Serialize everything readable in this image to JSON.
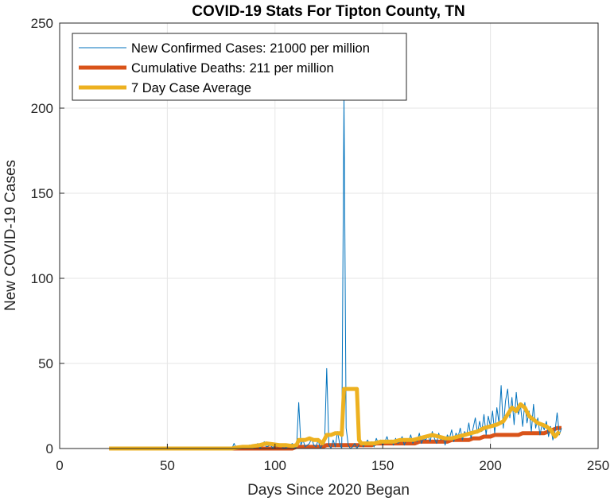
{
  "chart_data": {
    "type": "line",
    "title": "COVID-19 Stats For Tipton County, TN",
    "xlabel": "Days Since 2020 Began",
    "ylabel": "New COVID-19 Cases",
    "xlim": [
      0,
      250
    ],
    "ylim": [
      0,
      250
    ],
    "xticks": [
      "0",
      "50",
      "100",
      "150",
      "200",
      "250"
    ],
    "yticks": [
      "0",
      "50",
      "100",
      "150",
      "200",
      "250"
    ],
    "grid": true,
    "legend_position": "top-left",
    "series": [
      {
        "name": "New Confirmed Cases: 21000 per million",
        "color": "#0072BD",
        "style": "thin",
        "points": [
          [
            23,
            0
          ],
          [
            40,
            0
          ],
          [
            60,
            0
          ],
          [
            78,
            0
          ],
          [
            80,
            0
          ],
          [
            81,
            3
          ],
          [
            82,
            0
          ],
          [
            84,
            1
          ],
          [
            86,
            0
          ],
          [
            88,
            2
          ],
          [
            90,
            0
          ],
          [
            92,
            3
          ],
          [
            93,
            0
          ],
          [
            95,
            4
          ],
          [
            96,
            1
          ],
          [
            98,
            2
          ],
          [
            99,
            0
          ],
          [
            100,
            3
          ],
          [
            101,
            1
          ],
          [
            103,
            2
          ],
          [
            104,
            0
          ],
          [
            106,
            1
          ],
          [
            108,
            3
          ],
          [
            109,
            0
          ],
          [
            110,
            1
          ],
          [
            111,
            27
          ],
          [
            112,
            2
          ],
          [
            113,
            5
          ],
          [
            114,
            1
          ],
          [
            116,
            3
          ],
          [
            117,
            6
          ],
          [
            118,
            2
          ],
          [
            119,
            1
          ],
          [
            120,
            5
          ],
          [
            121,
            0
          ],
          [
            122,
            2
          ],
          [
            123,
            3
          ],
          [
            124,
            47
          ],
          [
            125,
            2
          ],
          [
            126,
            0
          ],
          [
            127,
            5
          ],
          [
            128,
            1
          ],
          [
            129,
            10
          ],
          [
            130,
            3
          ],
          [
            131,
            0
          ],
          [
            132,
            207
          ],
          [
            133,
            12
          ],
          [
            134,
            2
          ],
          [
            135,
            0
          ],
          [
            136,
            1
          ],
          [
            137,
            3
          ],
          [
            138,
            0
          ],
          [
            139,
            2
          ],
          [
            140,
            4
          ],
          [
            141,
            1
          ],
          [
            142,
            3
          ],
          [
            143,
            5
          ],
          [
            144,
            2
          ],
          [
            145,
            4
          ],
          [
            146,
            1
          ],
          [
            147,
            6
          ],
          [
            148,
            3
          ],
          [
            149,
            5
          ],
          [
            150,
            2
          ],
          [
            151,
            4
          ],
          [
            152,
            7
          ],
          [
            153,
            3
          ],
          [
            154,
            5
          ],
          [
            155,
            2
          ],
          [
            156,
            6
          ],
          [
            157,
            3
          ],
          [
            158,
            4
          ],
          [
            159,
            7
          ],
          [
            160,
            2
          ],
          [
            161,
            5
          ],
          [
            162,
            4
          ],
          [
            163,
            8
          ],
          [
            164,
            3
          ],
          [
            165,
            6
          ],
          [
            166,
            4
          ],
          [
            167,
            9
          ],
          [
            168,
            3
          ],
          [
            169,
            6
          ],
          [
            170,
            5
          ],
          [
            171,
            8
          ],
          [
            172,
            4
          ],
          [
            173,
            10
          ],
          [
            174,
            6
          ],
          [
            175,
            3
          ],
          [
            176,
            9
          ],
          [
            177,
            5
          ],
          [
            178,
            7
          ],
          [
            179,
            2
          ],
          [
            180,
            8
          ],
          [
            181,
            6
          ],
          [
            182,
            11
          ],
          [
            183,
            4
          ],
          [
            184,
            9
          ],
          [
            185,
            7
          ],
          [
            186,
            12
          ],
          [
            187,
            5
          ],
          [
            188,
            10
          ],
          [
            189,
            8
          ],
          [
            190,
            15
          ],
          [
            191,
            6
          ],
          [
            192,
            12
          ],
          [
            193,
            18
          ],
          [
            194,
            9
          ],
          [
            195,
            16
          ],
          [
            196,
            10
          ],
          [
            197,
            20
          ],
          [
            198,
            8
          ],
          [
            199,
            19
          ],
          [
            200,
            13
          ],
          [
            201,
            22
          ],
          [
            202,
            9
          ],
          [
            203,
            24
          ],
          [
            204,
            15
          ],
          [
            205,
            37
          ],
          [
            206,
            12
          ],
          [
            207,
            28
          ],
          [
            208,
            35
          ],
          [
            209,
            18
          ],
          [
            210,
            30
          ],
          [
            211,
            14
          ],
          [
            212,
            33
          ],
          [
            213,
            20
          ],
          [
            214,
            25
          ],
          [
            215,
            13
          ],
          [
            216,
            27
          ],
          [
            217,
            15
          ],
          [
            218,
            22
          ],
          [
            219,
            10
          ],
          [
            220,
            26
          ],
          [
            221,
            12
          ],
          [
            222,
            18
          ],
          [
            223,
            8
          ],
          [
            224,
            14
          ],
          [
            225,
            11
          ],
          [
            226,
            16
          ],
          [
            227,
            7
          ],
          [
            228,
            13
          ],
          [
            229,
            5
          ],
          [
            230,
            10
          ],
          [
            231,
            21
          ],
          [
            232,
            8
          ],
          [
            233,
            12
          ]
        ]
      },
      {
        "name": "Cumulative Deaths: 211 per million",
        "color": "#D95319",
        "style": "thick",
        "points": [
          [
            23,
            0
          ],
          [
            100,
            0
          ],
          [
            108,
            0
          ],
          [
            110,
            1
          ],
          [
            122,
            1
          ],
          [
            124,
            2
          ],
          [
            145,
            2
          ],
          [
            147,
            3
          ],
          [
            165,
            3
          ],
          [
            167,
            4
          ],
          [
            180,
            4
          ],
          [
            182,
            5
          ],
          [
            190,
            5
          ],
          [
            192,
            6
          ],
          [
            195,
            6
          ],
          [
            197,
            7
          ],
          [
            200,
            7
          ],
          [
            202,
            8
          ],
          [
            213,
            8
          ],
          [
            215,
            9
          ],
          [
            225,
            9
          ],
          [
            227,
            10
          ],
          [
            229,
            11
          ],
          [
            231,
            12
          ],
          [
            233,
            12
          ]
        ]
      },
      {
        "name": "7 Day Case Average",
        "color": "#EDB120",
        "style": "thick",
        "points": [
          [
            23,
            0
          ],
          [
            80,
            0
          ],
          [
            82,
            0.5
          ],
          [
            85,
            1
          ],
          [
            88,
            1
          ],
          [
            90,
            1.5
          ],
          [
            93,
            2
          ],
          [
            96,
            3
          ],
          [
            99,
            2.5
          ],
          [
            102,
            2
          ],
          [
            105,
            2
          ],
          [
            108,
            1.5
          ],
          [
            110,
            2
          ],
          [
            111,
            5
          ],
          [
            114,
            5
          ],
          [
            116,
            6
          ],
          [
            118,
            5
          ],
          [
            120,
            5
          ],
          [
            122,
            3
          ],
          [
            124,
            8
          ],
          [
            126,
            8
          ],
          [
            128,
            9
          ],
          [
            130,
            9
          ],
          [
            131,
            8
          ],
          [
            132,
            35
          ],
          [
            138,
            35
          ],
          [
            139,
            5
          ],
          [
            140,
            3
          ],
          [
            143,
            3
          ],
          [
            146,
            3
          ],
          [
            149,
            4
          ],
          [
            152,
            4
          ],
          [
            155,
            4
          ],
          [
            158,
            5
          ],
          [
            161,
            5
          ],
          [
            164,
            5
          ],
          [
            167,
            6
          ],
          [
            170,
            7
          ],
          [
            173,
            8
          ],
          [
            176,
            7
          ],
          [
            179,
            6
          ],
          [
            182,
            6
          ],
          [
            185,
            7
          ],
          [
            188,
            8
          ],
          [
            191,
            9
          ],
          [
            194,
            10
          ],
          [
            197,
            12
          ],
          [
            200,
            13
          ],
          [
            203,
            14
          ],
          [
            206,
            16
          ],
          [
            208,
            20
          ],
          [
            210,
            24
          ],
          [
            212,
            22
          ],
          [
            214,
            26
          ],
          [
            216,
            24
          ],
          [
            218,
            19
          ],
          [
            220,
            17
          ],
          [
            222,
            15
          ],
          [
            224,
            14
          ],
          [
            226,
            13
          ],
          [
            228,
            11
          ],
          [
            230,
            7
          ],
          [
            232,
            10
          ]
        ]
      }
    ]
  }
}
